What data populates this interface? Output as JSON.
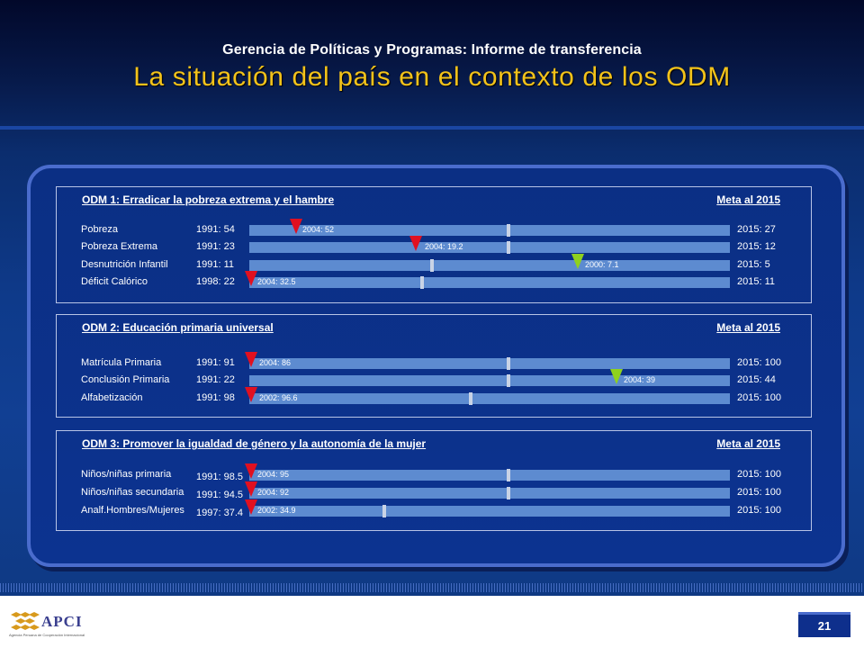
{
  "header": {
    "subtitle": "Gerencia de Políticas y Programas: Informe de transferencia",
    "title": "La situación del país en el contexto de los ODM"
  },
  "colors": {
    "title": "#f2c21a",
    "bar": "#5d8bd0",
    "marker_red": "#e01020",
    "marker_green": "#8fd11e",
    "panel": "#0c3390"
  },
  "sections": [
    {
      "title": "ODM 1: Erradicar la pobreza extrema y el hambre",
      "meta": "Meta al 2015",
      "rows": [
        {
          "label": "Pobreza",
          "start": "1991: 54",
          "target": "2015: 27",
          "current": "2004: 52",
          "marker": "red"
        },
        {
          "label": "Pobreza Extrema",
          "start": "1991: 23",
          "target": "2015: 12",
          "current": "2004: 19.2",
          "marker": "red"
        },
        {
          "label": "Desnutrición Infantil",
          "start": "1991: 11",
          "target": "2015: 5",
          "current": "2000: 7.1",
          "marker": "green"
        },
        {
          "label": "Déficit Calórico",
          "start": "1998: 22",
          "target": "2015: 11",
          "current": "2004: 32.5",
          "marker": "red"
        }
      ]
    },
    {
      "title": "ODM 2: Educación primaria universal",
      "meta": "Meta al 2015",
      "rows": [
        {
          "label": "Matrícula Primaria",
          "start": "1991: 91",
          "target": "2015: 100",
          "current": "2004: 86",
          "marker": "red"
        },
        {
          "label": "Conclusión Primaria",
          "start": "1991: 22",
          "target": "2015: 44",
          "current": "2004: 39",
          "marker": "green"
        },
        {
          "label": "Alfabetización",
          "start": "1991: 98",
          "target": "2015: 100",
          "current": "2002: 96.6",
          "marker": "red"
        }
      ]
    },
    {
      "title": "ODM 3: Promover la igualdad de género y la autonomía de la mujer",
      "meta": "Meta al 2015",
      "rows": [
        {
          "label": "Niños/niñas primaria",
          "start": "1991: 98.5",
          "target": "2015: 100",
          "current": "2004: 95",
          "marker": "red"
        },
        {
          "label": "Niños/niñas secundaria",
          "start": "1991: 94.5",
          "target": "2015: 100",
          "current": "2004: 92",
          "marker": "red"
        },
        {
          "label": "Analf.Hombres/Mujeres",
          "start": "1997: 37.4",
          "target": "2015: 100",
          "current": "2002: 34.9",
          "marker": "red"
        }
      ]
    }
  ],
  "footer": {
    "logo_text": "APCI",
    "logo_sub": "Agencia Peruana de Cooperación Internacional",
    "page_number": "21"
  }
}
